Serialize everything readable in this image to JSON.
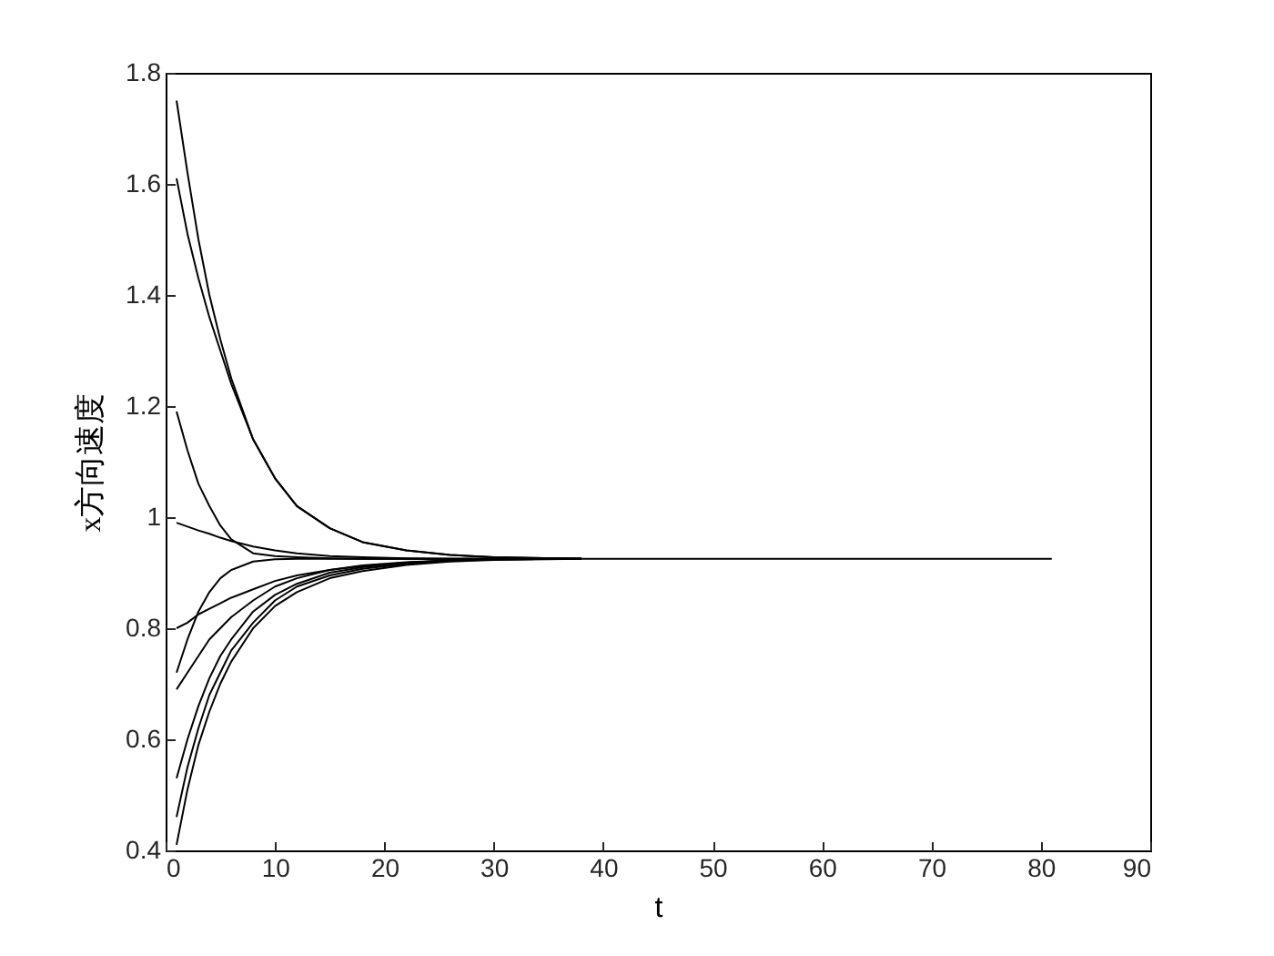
{
  "chart_data": {
    "type": "line",
    "xlabel": "t",
    "ylabel": "x方向速度",
    "x": [
      1,
      2,
      3,
      4,
      5,
      6,
      8,
      10,
      12,
      15,
      18,
      22,
      26,
      30,
      38
    ],
    "series": [
      {
        "color": "#000000",
        "x": [
          1,
          2,
          3,
          4,
          5,
          6,
          8,
          10,
          12,
          15,
          18,
          22,
          26,
          30,
          38,
          50,
          60,
          70,
          81
        ],
        "values": [
          1.75,
          1.62,
          1.5,
          1.4,
          1.32,
          1.25,
          1.14,
          1.07,
          1.02,
          0.98,
          0.955,
          0.94,
          0.932,
          0.928,
          0.925,
          0.925,
          0.925,
          0.925,
          0.925
        ]
      },
      {
        "color": "#000000",
        "values": [
          1.61,
          1.51,
          1.43,
          1.36,
          1.3,
          1.24,
          1.14,
          1.07,
          1.02,
          0.98,
          0.955,
          0.94,
          0.932,
          0.928,
          0.925
        ]
      },
      {
        "color": "#000000",
        "values": [
          1.19,
          1.12,
          1.06,
          1.02,
          0.985,
          0.96,
          0.935,
          0.93,
          0.928,
          0.926,
          0.925,
          0.925,
          0.925,
          0.925,
          0.925
        ]
      },
      {
        "color": "#000000",
        "values": [
          0.99,
          0.983,
          0.976,
          0.97,
          0.963,
          0.957,
          0.947,
          0.94,
          0.935,
          0.93,
          0.928,
          0.926,
          0.925,
          0.925,
          0.925
        ]
      },
      {
        "color": "#000000",
        "values": [
          0.8,
          0.81,
          0.825,
          0.835,
          0.845,
          0.855,
          0.87,
          0.885,
          0.895,
          0.905,
          0.912,
          0.918,
          0.922,
          0.924,
          0.925
        ]
      },
      {
        "color": "#000000",
        "values": [
          0.72,
          0.78,
          0.83,
          0.865,
          0.89,
          0.905,
          0.92,
          0.924,
          0.925,
          0.925,
          0.925,
          0.925,
          0.925,
          0.925,
          0.925
        ]
      },
      {
        "color": "#000000",
        "values": [
          0.69,
          0.72,
          0.75,
          0.78,
          0.8,
          0.82,
          0.85,
          0.875,
          0.89,
          0.905,
          0.913,
          0.919,
          0.922,
          0.924,
          0.925
        ]
      },
      {
        "color": "#000000",
        "values": [
          0.53,
          0.6,
          0.66,
          0.71,
          0.75,
          0.78,
          0.83,
          0.86,
          0.88,
          0.9,
          0.91,
          0.918,
          0.922,
          0.924,
          0.925
        ]
      },
      {
        "color": "#000000",
        "values": [
          0.46,
          0.55,
          0.62,
          0.68,
          0.72,
          0.76,
          0.81,
          0.85,
          0.875,
          0.895,
          0.907,
          0.916,
          0.921,
          0.924,
          0.925
        ]
      },
      {
        "color": "#000000",
        "values": [
          0.41,
          0.51,
          0.59,
          0.65,
          0.7,
          0.74,
          0.8,
          0.84,
          0.865,
          0.89,
          0.903,
          0.914,
          0.92,
          0.923,
          0.925
        ]
      }
    ],
    "xlim": [
      0,
      90
    ],
    "xticks": [
      0,
      10,
      20,
      30,
      40,
      50,
      60,
      70,
      80,
      90
    ],
    "ylim": [
      0.4,
      1.8
    ],
    "yticks": [
      0.4,
      0.6,
      0.8,
      1,
      1.2,
      1.4,
      1.6,
      1.8
    ]
  }
}
